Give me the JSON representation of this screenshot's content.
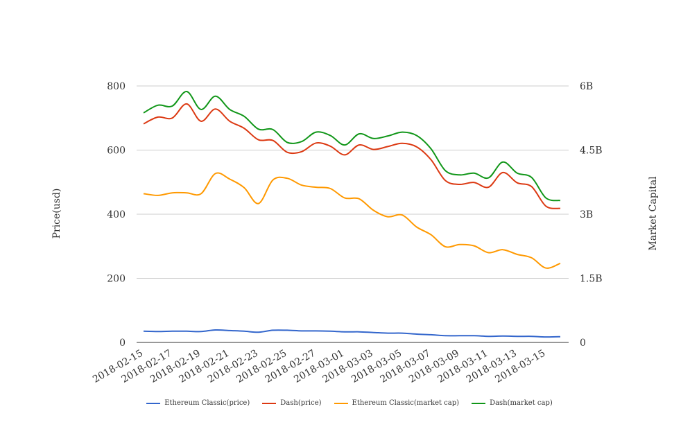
{
  "chart_data": {
    "type": "line",
    "title": "",
    "ylabel_left": "Price(usd)",
    "ylabel_right": "Market Capital",
    "y_left": {
      "range": [
        0,
        800
      ],
      "ticks": [
        "0",
        "200",
        "400",
        "600",
        "800"
      ]
    },
    "y_right": {
      "range": [
        0,
        6000000000
      ],
      "ticks": [
        "0",
        "1.5B",
        "3B",
        "4.5B",
        "6B"
      ]
    },
    "x_tick_labels": [
      "2018-02-15",
      "2018-02-17",
      "2018-02-19",
      "2018-02-21",
      "2018-02-23",
      "2018-02-25",
      "2018-02-27",
      "2018-03-01",
      "2018-03-03",
      "2018-03-05",
      "2018-03-07",
      "2018-03-09",
      "2018-03-11",
      "2018-03-13",
      "2018-03-15"
    ],
    "x": [
      "2018-02-15",
      "2018-02-16",
      "2018-02-17",
      "2018-02-18",
      "2018-02-19",
      "2018-02-20",
      "2018-02-21",
      "2018-02-22",
      "2018-02-23",
      "2018-02-24",
      "2018-02-25",
      "2018-02-26",
      "2018-02-27",
      "2018-02-28",
      "2018-03-01",
      "2018-03-02",
      "2018-03-03",
      "2018-03-04",
      "2018-03-05",
      "2018-03-06",
      "2018-03-07",
      "2018-03-08",
      "2018-03-09",
      "2018-03-10",
      "2018-03-11",
      "2018-03-12",
      "2018-03-13",
      "2018-03-14",
      "2018-03-15",
      "2018-03-16"
    ],
    "grid": true,
    "legend_position": "bottom",
    "series": [
      {
        "name": "Ethereum Classic(price)",
        "axis": "left",
        "color": "#3366cc",
        "values": [
          35,
          34,
          35,
          35,
          34,
          39,
          37,
          35,
          32,
          38,
          38,
          36,
          36,
          35,
          33,
          33,
          31,
          29,
          29,
          26,
          24,
          21,
          21,
          21,
          19,
          20,
          19,
          19,
          17,
          18
        ]
      },
      {
        "name": "Dash(price)",
        "axis": "left",
        "color": "#dc3912",
        "values": [
          682,
          703,
          700,
          744,
          690,
          728,
          690,
          668,
          632,
          630,
          593,
          595,
          622,
          612,
          585,
          616,
          602,
          611,
          621,
          610,
          570,
          505,
          493,
          499,
          484,
          530,
          498,
          486,
          425,
          418
        ]
      },
      {
        "name": "Ethereum Classic(market cap)",
        "axis": "right",
        "color": "#ff9900",
        "values": [
          3480000000,
          3440000000,
          3500000000,
          3500000000,
          3480000000,
          3950000000,
          3820000000,
          3620000000,
          3250000000,
          3800000000,
          3840000000,
          3680000000,
          3630000000,
          3600000000,
          3380000000,
          3360000000,
          3090000000,
          2940000000,
          2980000000,
          2700000000,
          2520000000,
          2240000000,
          2290000000,
          2260000000,
          2100000000,
          2170000000,
          2060000000,
          1980000000,
          1740000000,
          1850000000
        ]
      },
      {
        "name": "Dash(market cap)",
        "axis": "right",
        "color": "#109618",
        "values": [
          5370000000,
          5550000000,
          5530000000,
          5870000000,
          5450000000,
          5760000000,
          5450000000,
          5290000000,
          4990000000,
          4980000000,
          4680000000,
          4700000000,
          4920000000,
          4840000000,
          4620000000,
          4880000000,
          4770000000,
          4830000000,
          4920000000,
          4840000000,
          4530000000,
          4020000000,
          3920000000,
          3960000000,
          3850000000,
          4220000000,
          3960000000,
          3860000000,
          3380000000,
          3320000000
        ]
      }
    ]
  }
}
